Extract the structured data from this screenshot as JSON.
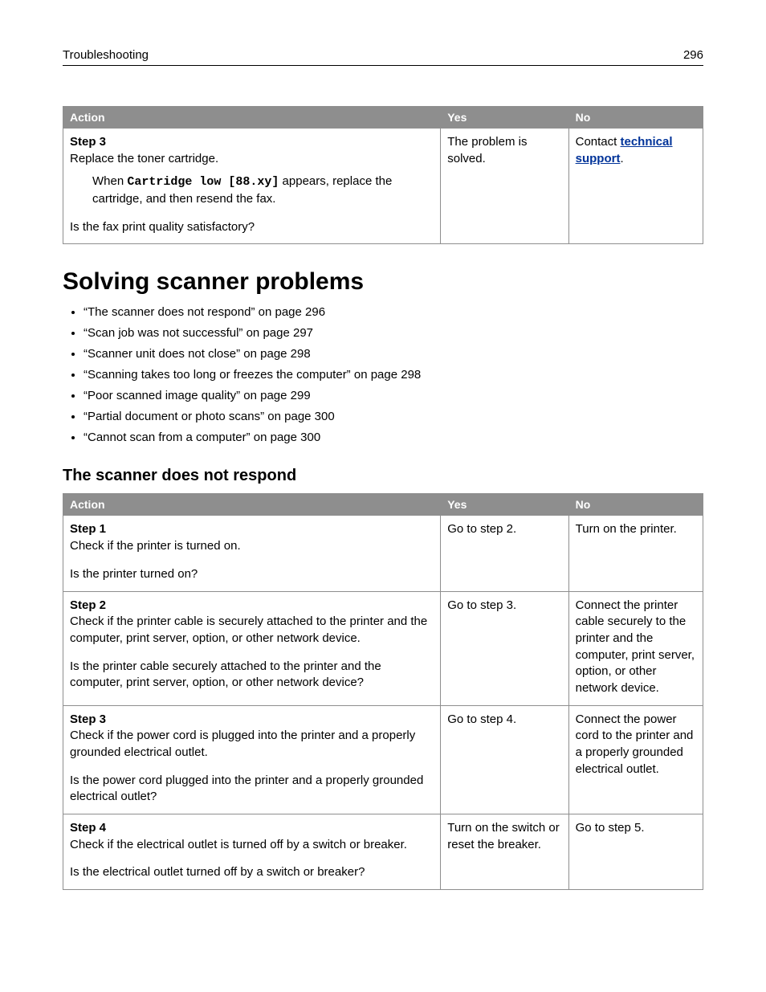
{
  "header": {
    "section": "Troubleshooting",
    "page_number": "296"
  },
  "table1": {
    "columns": {
      "action": "Action",
      "yes": "Yes",
      "no": "No"
    },
    "row": {
      "step_label": "Step 3",
      "instruction": "Replace the toner cartridge.",
      "note_prefix": "When ",
      "note_mono": "Cartridge low [88.xy]",
      "note_suffix": " appears, replace the cartridge, and then resend the fax.",
      "question": "Is the fax print quality satisfactory?",
      "yes": "The problem is solved.",
      "no_prefix": "Contact ",
      "no_link": "technical support",
      "no_suffix": "."
    }
  },
  "heading_main": "Solving scanner problems",
  "topics": [
    "“The scanner does not respond” on page 296",
    "“Scan job was not successful” on page 297",
    "“Scanner unit does not close” on page 298",
    "“Scanning takes too long or freezes the computer” on page 298",
    "“Poor scanned image quality” on page 299",
    "“Partial document or photo scans” on page 300",
    "“Cannot scan from a computer” on page 300"
  ],
  "heading_sub": "The scanner does not respond",
  "table2": {
    "columns": {
      "action": "Action",
      "yes": "Yes",
      "no": "No"
    },
    "rows": [
      {
        "step_label": "Step 1",
        "instruction": "Check if the printer is turned on.",
        "question": "Is the printer turned on?",
        "yes": "Go to step 2.",
        "no": "Turn on the printer."
      },
      {
        "step_label": "Step 2",
        "instruction": "Check if the printer cable is securely attached to the printer and the computer, print server, option, or other network device.",
        "question": "Is the printer cable securely attached to the printer and the computer, print server, option, or other network device?",
        "yes": "Go to step 3.",
        "no": "Connect the printer cable securely to the printer and the computer, print server, option, or other network device."
      },
      {
        "step_label": "Step 3",
        "instruction": "Check if the power cord is plugged into the printer and a properly grounded electrical outlet.",
        "question": "Is the power cord plugged into the printer and a properly grounded electrical outlet?",
        "yes": "Go to step 4.",
        "no": "Connect the power cord to the printer and a properly grounded electrical outlet."
      },
      {
        "step_label": "Step 4",
        "instruction": "Check if the electrical outlet is turned off by a switch or breaker.",
        "question": "Is the electrical outlet turned off by a switch or breaker?",
        "yes": "Turn on the switch or reset the breaker.",
        "no": "Go to step 5."
      }
    ]
  }
}
